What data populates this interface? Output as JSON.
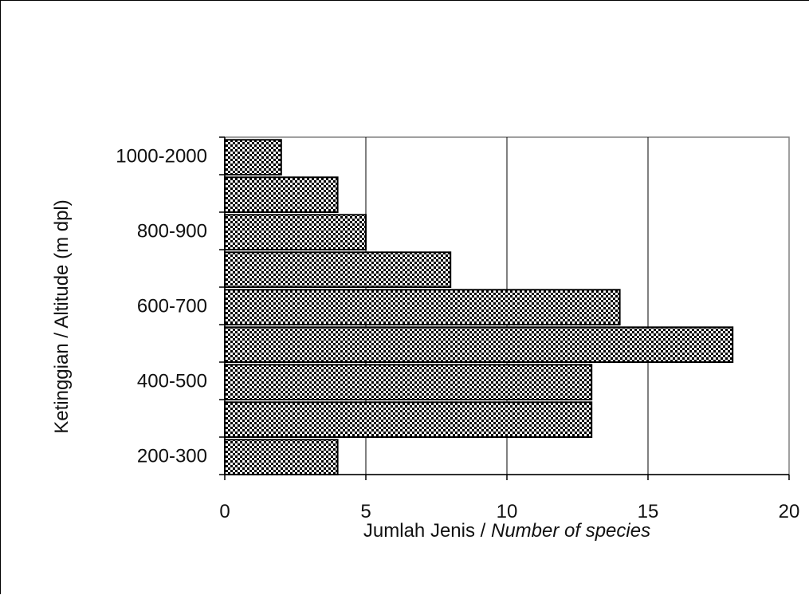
{
  "chart_data": {
    "type": "bar",
    "orientation": "horizontal",
    "categories": [
      "200-300",
      "",
      "400-500",
      "",
      "600-700",
      "",
      "800-900",
      "",
      "1000-2000"
    ],
    "values": [
      4,
      13,
      13,
      18,
      14,
      8,
      5,
      4,
      2
    ],
    "title": "",
    "xlabel": "Jumlah Jenis / ",
    "xlabel_italic": "Number of species",
    "ylabel": "Ketinggian / Altitude  (m dpl)",
    "xlim": [
      0,
      20
    ],
    "xticks": [
      0,
      5,
      10,
      15,
      20
    ],
    "grid": "vertical",
    "legend": "none",
    "bar_pattern": "checkerboard",
    "colors": {
      "bar_dark": "#000000",
      "bar_light": "#ffffff",
      "grid": "#000000",
      "plot_border": "#808080"
    }
  }
}
